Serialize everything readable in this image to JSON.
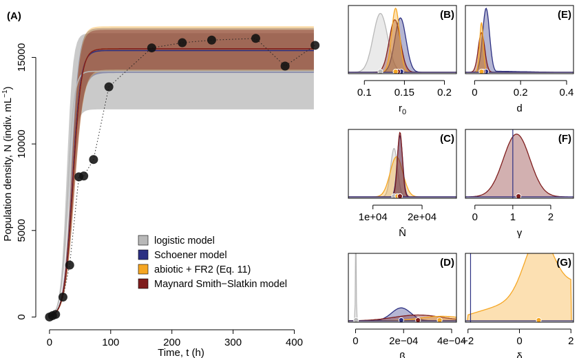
{
  "colors": {
    "logistic": "#b8b8b8",
    "schoener": "#2b2f82",
    "abiotic": "#f5a623",
    "msm": "#7f1d1d"
  },
  "chart_data": [
    {
      "id": "A",
      "type": "line",
      "panel_label": "(A)",
      "xlabel": "Time, t (h)",
      "ylabel": "Population density, N (indiv. mL",
      "ylabel_sup": "−1",
      "ylabel_close": ")",
      "xlim": [
        -10,
        440
      ],
      "ylim": [
        -300,
        18000
      ],
      "xticks": [
        0,
        100,
        200,
        300,
        400
      ],
      "yticks": [
        0,
        5000,
        10000,
        15000
      ],
      "legend_position": "bottom-right",
      "legend": [
        {
          "key": "logistic",
          "label": "logistic model"
        },
        {
          "key": "schoener",
          "label": "Schoener model"
        },
        {
          "key": "abiotic",
          "label": "abiotic + FR2 (Eq. 11)"
        },
        {
          "key": "msm",
          "label": "Maynard Smith−Slatkin model"
        }
      ],
      "observations": {
        "x": [
          0,
          5,
          10,
          22,
          33,
          48,
          56,
          72,
          97,
          167,
          217,
          265,
          337,
          385,
          434
        ],
        "y": [
          0,
          80,
          150,
          1150,
          3000,
          8100,
          8150,
          9100,
          13300,
          15550,
          15850,
          16000,
          16100,
          14500,
          15700
        ]
      },
      "series": [
        {
          "key": "logistic",
          "N0": 60,
          "K": 14200,
          "r": 0.185,
          "band_lo_K": 12000,
          "band_hi_K": 16400
        },
        {
          "key": "schoener",
          "N0": 60,
          "K": 15400,
          "r": 0.148,
          "band_lo_K": 14100,
          "band_hi_K": 16700
        },
        {
          "key": "abiotic",
          "N0": 60,
          "K": 15500,
          "r": 0.145,
          "band_lo_K": 14200,
          "band_hi_K": 16800
        },
        {
          "key": "msm",
          "N0": 60,
          "K": 15500,
          "r": 0.145,
          "band_lo_K": 14300,
          "band_hi_K": 16600
        }
      ]
    },
    {
      "id": "B",
      "type": "area",
      "panel_label": "(B)",
      "xlabel": "r",
      "xlabel_sub": "0",
      "xlim": [
        0.08,
        0.215
      ],
      "xticks": [
        0.1,
        0.15,
        0.2
      ],
      "tick_labels": [
        "0.1",
        "0.15",
        "0.2"
      ],
      "densities": [
        {
          "key": "logistic",
          "mode": 0.12,
          "sd": 0.009,
          "height": 0.92,
          "point": 0.12
        },
        {
          "key": "schoener",
          "mode": 0.145,
          "sd": 0.007,
          "height": 0.85,
          "point": 0.146
        },
        {
          "key": "msm",
          "mode": 0.138,
          "sd": 0.007,
          "height": 0.82,
          "point": 0.142
        },
        {
          "key": "abiotic",
          "mode": 0.139,
          "sd": 0.005,
          "height": 1.0,
          "point": 0.139
        }
      ],
      "vline": null
    },
    {
      "id": "E",
      "type": "area",
      "panel_label": "(E)",
      "xlabel": "d",
      "xlim": [
        -0.04,
        0.43
      ],
      "xticks": [
        0,
        0.2,
        0.4
      ],
      "tick_labels": [
        "0",
        "0.2",
        "0.4"
      ],
      "densities": [
        {
          "key": "schoener",
          "mode": 0.05,
          "sd": 0.015,
          "height": 1.0,
          "point": 0.05,
          "tail": 0.3
        },
        {
          "key": "msm",
          "mode": 0.03,
          "sd": 0.014,
          "height": 0.62,
          "point": 0.036
        },
        {
          "key": "abiotic",
          "mode": 0.03,
          "sd": 0.008,
          "height": 0.78,
          "point": 0.03
        }
      ],
      "vline": null
    },
    {
      "id": "C",
      "type": "area",
      "panel_label": "(C)",
      "xlabel": "N̂",
      "xlim": [
        5000,
        27000
      ],
      "xticks": [
        10000,
        20000
      ],
      "tick_labels": [
        "1e+04",
        "2e+04"
      ],
      "densities": [
        {
          "key": "logistic",
          "mode": 14300,
          "sd": 700,
          "height": 0.75,
          "point": 14300
        },
        {
          "key": "abiotic",
          "mode": 14800,
          "sd": 1300,
          "height": 0.62,
          "point": 15000
        },
        {
          "key": "schoener",
          "mode": 15500,
          "sd": 550,
          "height": 0.95,
          "point": 15500
        },
        {
          "key": "msm",
          "mode": 15500,
          "sd": 500,
          "height": 1.0,
          "point": 15500
        }
      ],
      "vline": null
    },
    {
      "id": "F",
      "type": "area",
      "panel_label": "(F)",
      "xlabel": "γ",
      "xlim": [
        -0.25,
        2.6
      ],
      "xticks": [
        0,
        1,
        2
      ],
      "tick_labels": [
        "0",
        "1",
        "2"
      ],
      "densities": [
        {
          "key": "msm",
          "mode": 1.1,
          "sd": 0.35,
          "height": 0.97,
          "point": 1.15
        }
      ],
      "vline": 1
    },
    {
      "id": "D",
      "type": "area",
      "panel_label": "(D)",
      "xlabel": "β",
      "xlim": [
        -3e-05,
        0.00042
      ],
      "xticks": [
        0,
        0.0002,
        0.0004
      ],
      "tick_labels": [
        "0",
        "2e−04",
        "4e−04"
      ],
      "densities": [
        {
          "key": "logistic",
          "mode": 1e-06,
          "sd": 1.5e-06,
          "height": 1.6,
          "point": 2e-06
        },
        {
          "key": "schoener",
          "mode": 0.00019,
          "sd": 4e-05,
          "height": 0.2,
          "point": 0.00019
        },
        {
          "key": "msm",
          "mode": 0.00026,
          "sd": 0.0001,
          "height": 0.09,
          "point": 0.00026
        },
        {
          "key": "abiotic",
          "mode": 0.00036,
          "sd": 9e-05,
          "height": 0.07,
          "point": 0.00035
        }
      ],
      "vline": null
    },
    {
      "id": "G",
      "type": "area",
      "panel_label": "(G)",
      "xlabel": "δ",
      "xlim": [
        -2.1,
        2.1
      ],
      "xticks": [
        -2,
        0,
        2
      ],
      "tick_labels": [
        "−2",
        "0",
        "2"
      ],
      "densities": [
        {
          "key": "abiotic",
          "mode": 0.75,
          "sd": 0.4,
          "height": 1.0,
          "point": 0.75,
          "ramp": true
        }
      ],
      "vline": -1.9
    }
  ]
}
